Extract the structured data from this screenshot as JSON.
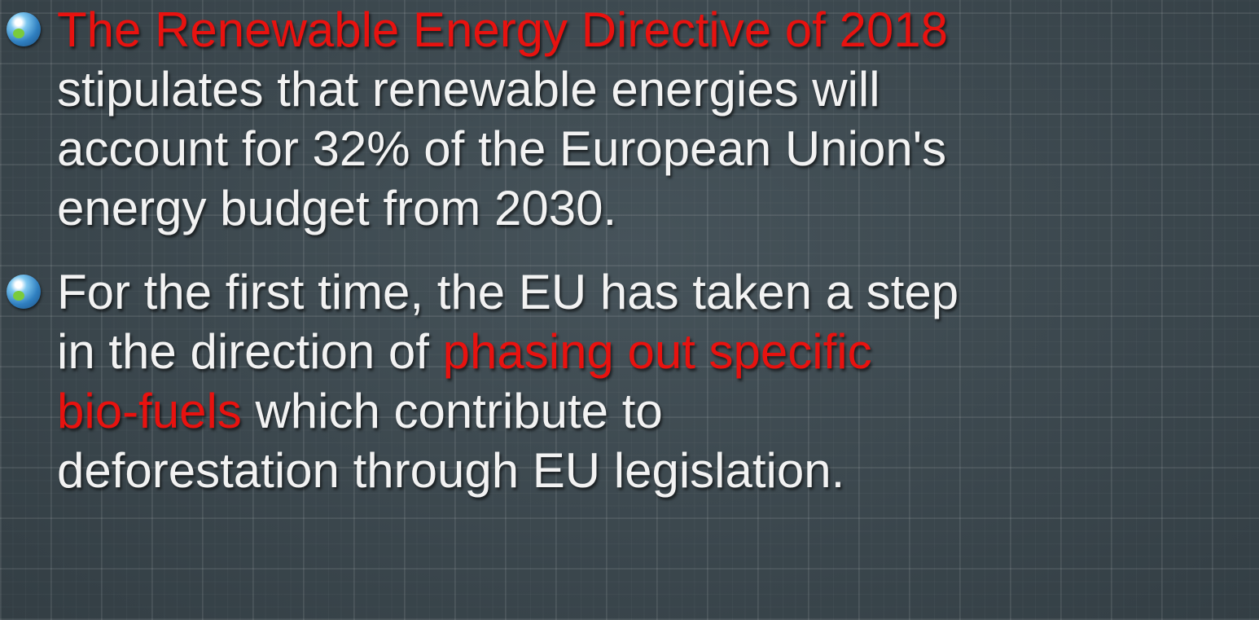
{
  "bullets": [
    {
      "lines": [
        [
          {
            "text": "The Renewable Energy Directive of 2018",
            "color": "#e8120f"
          }
        ],
        [
          {
            "text": "stipulates that renewable energies will"
          }
        ],
        [
          {
            "text": "account for 32% of the European Union's"
          }
        ],
        [
          {
            "text": "energy budget from 2030."
          }
        ]
      ]
    },
    {
      "lines": [
        [
          {
            "text": "For the first time, the EU has taken a step"
          }
        ],
        [
          {
            "text": "in the direction of "
          },
          {
            "text": "phasing out specific",
            "color": "#e8120f"
          }
        ],
        [
          {
            "text": "bio-fuels",
            "color": "#e8120f"
          },
          {
            "text": " which contribute to"
          }
        ],
        [
          {
            "text": "deforestation through EU legislation."
          }
        ]
      ]
    }
  ]
}
